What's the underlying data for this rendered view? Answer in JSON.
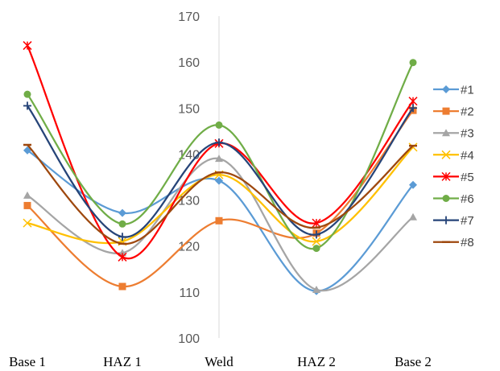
{
  "chart_data": {
    "type": "line",
    "smooth": true,
    "categories": [
      "Base 1",
      "HAZ 1",
      "Weld",
      "HAZ 2",
      "Base 2"
    ],
    "ylim": [
      100,
      170
    ],
    "yticks": [
      100,
      110,
      120,
      130,
      140,
      150,
      160,
      170
    ],
    "grid": false,
    "legend_position": "right",
    "series": [
      {
        "name": "#1",
        "color": "#5B9BD5",
        "marker": "diamond",
        "values": [
          140.8,
          127.2,
          134.2,
          110.2,
          133.3
        ]
      },
      {
        "name": "#2",
        "color": "#ED7D31",
        "marker": "square",
        "values": [
          128.8,
          111.2,
          125.5,
          122.8,
          149.5
        ]
      },
      {
        "name": "#3",
        "color": "#A5A5A5",
        "marker": "triangle",
        "values": [
          131.0,
          118.5,
          139.0,
          110.5,
          126.3
        ]
      },
      {
        "name": "#4",
        "color": "#FFC000",
        "marker": "x",
        "values": [
          125.0,
          121.0,
          135.5,
          121.0,
          141.5
        ]
      },
      {
        "name": "#5",
        "color": "#FF0000",
        "marker": "star",
        "values": [
          163.6,
          117.6,
          142.3,
          125.0,
          151.5
        ]
      },
      {
        "name": "#6",
        "color": "#70AD47",
        "marker": "circle",
        "values": [
          153.0,
          124.8,
          146.3,
          119.5,
          159.9
        ]
      },
      {
        "name": "#7",
        "color": "#264478",
        "marker": "plus",
        "values": [
          150.5,
          122.0,
          142.5,
          122.5,
          150.0
        ]
      },
      {
        "name": "#8",
        "color": "#9E480E",
        "marker": "dash",
        "values": [
          142.0,
          120.5,
          136.0,
          124.0,
          141.8
        ]
      }
    ]
  }
}
